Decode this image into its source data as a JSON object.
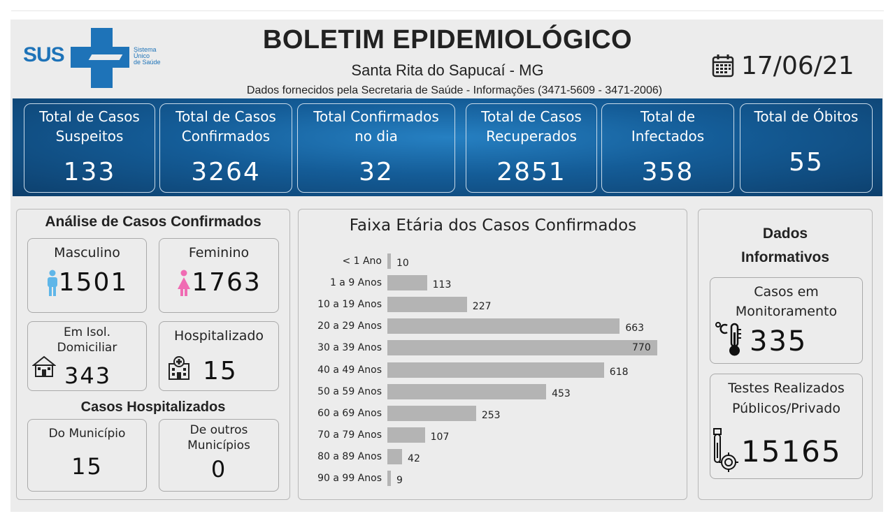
{
  "header": {
    "logo_text": "SUS",
    "logo_sub": [
      "Sistema",
      "Único",
      "de Saúde"
    ],
    "title": "BOLETIM EPIDEMIOLÓGICO",
    "city": "Santa Rita do Sapucaí - MG",
    "source": "Dados fornecidos pela Secretaria de Saúde - Informações (3471-5609 - 3471-2006)",
    "date": "17/06/21",
    "date_icon": "calendar-icon"
  },
  "stats": [
    {
      "label": "Total de Casos Suspeitos",
      "value": "133"
    },
    {
      "label": "Total de Casos Confirmados",
      "value": "3264"
    },
    {
      "label": "Total Confirmados no dia",
      "value": "32"
    },
    {
      "label": "Total de Casos Recuperados",
      "value": "2851"
    },
    {
      "label": "Total de Infectados",
      "value": "358"
    },
    {
      "label": "Total de Óbitos",
      "value": "55"
    }
  ],
  "analysis": {
    "title": "Análise de Casos Confirmados",
    "masculino_label": "Masculino",
    "masculino_value": "1501",
    "masculino_icon": "male-person-icon",
    "feminino_label": "Feminino",
    "feminino_value": "1763",
    "feminino_icon": "female-person-icon",
    "isolamento_label": "Em Isol. Domiciliar",
    "isolamento_value": "343",
    "isolamento_icon": "house-icon",
    "hospitalizado_label": "Hospitalizado",
    "hospitalizado_value": "15",
    "hospitalizado_icon": "hospital-icon",
    "hosp_title": "Casos Hospitalizados",
    "municipio_label": "Do Município",
    "municipio_value": "15",
    "outros_label": "De outros Municípios",
    "outros_value": "0"
  },
  "chart_data": {
    "type": "bar",
    "title": "Faixa Etária dos Casos Confirmados",
    "categories": [
      "< 1 Ano",
      "1 a 9 Anos",
      "10 a 19 Anos",
      "20 a 29 Anos",
      "30 a 39 Anos",
      "40 a 49 Anos",
      "50 a 59 Anos",
      "60 a 69 Anos",
      "70 a 79 Anos",
      "80 a 89 Anos",
      "90 a 99 Anos"
    ],
    "values": [
      10,
      113,
      227,
      663,
      770,
      618,
      453,
      253,
      107,
      42,
      9
    ],
    "orientation": "horizontal",
    "bar_color": "#b4b4b4",
    "grid": false
  },
  "info": {
    "title": "Dados Informativos",
    "monitor_label": "Casos em Monitoramento",
    "monitor_value": "335",
    "monitor_icon": "thermometer-icon",
    "testes_label": "Testes Realizados Públicos/Privado",
    "testes_value": "15165",
    "testes_icon": "test-tube-virus-icon"
  },
  "colors": {
    "brand": "#1e73b8",
    "band": "#145c97",
    "male": "#5fb6e8",
    "female": "#f06bb3"
  }
}
